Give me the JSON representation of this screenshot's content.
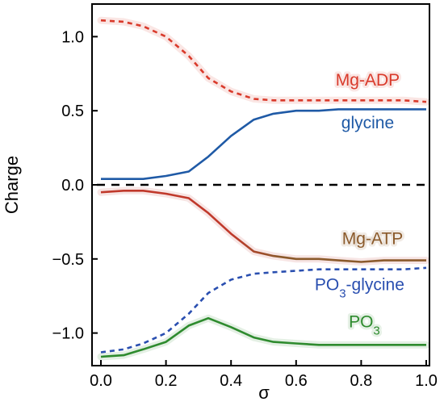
{
  "chart_data": {
    "type": "line",
    "xlabel": "σ",
    "ylabel": "Charge",
    "xlim": [
      0.0,
      1.0
    ],
    "ylim": [
      -1.22,
      1.22
    ],
    "x_ticks": [
      "0.0",
      "0.2",
      "0.4",
      "0.6",
      "0.8",
      "1.0"
    ],
    "x_tick_values": [
      0.0,
      0.2,
      0.4,
      0.6,
      0.8,
      1.0
    ],
    "y_ticks": [
      "1.0",
      "0.5",
      "0.0",
      "−0.5",
      "−1.0"
    ],
    "y_tick_values": [
      1.0,
      0.5,
      0.0,
      -0.5,
      -1.0
    ],
    "grid": false,
    "zero_line": {
      "y": 0.0,
      "style": "dashed",
      "color": "#000000"
    },
    "series": [
      {
        "name": "Mg-ADP",
        "label_parts": [
          {
            "text": "Mg-ADP"
          }
        ],
        "color": "#d93a2b",
        "style": "dotted",
        "highlight": true,
        "x": [
          0.0,
          0.07,
          0.13,
          0.2,
          0.27,
          0.33,
          0.4,
          0.47,
          0.53,
          0.6,
          0.67,
          0.73,
          0.8,
          0.87,
          0.93,
          1.0
        ],
        "y": [
          1.11,
          1.1,
          1.07,
          1.0,
          0.87,
          0.72,
          0.63,
          0.58,
          0.57,
          0.57,
          0.57,
          0.57,
          0.57,
          0.57,
          0.57,
          0.56
        ]
      },
      {
        "name": "glycine",
        "label_parts": [
          {
            "text": "glycine"
          }
        ],
        "color": "#1f5aa6",
        "style": "solid",
        "highlight": false,
        "x": [
          0.0,
          0.07,
          0.13,
          0.2,
          0.27,
          0.33,
          0.4,
          0.47,
          0.53,
          0.6,
          0.67,
          0.73,
          0.8,
          0.87,
          0.93,
          1.0
        ],
        "y": [
          0.04,
          0.04,
          0.04,
          0.06,
          0.09,
          0.19,
          0.33,
          0.44,
          0.48,
          0.5,
          0.5,
          0.51,
          0.51,
          0.51,
          0.51,
          0.51
        ]
      },
      {
        "name": "Mg-ATP",
        "label_parts": [
          {
            "text": "Mg-ATP"
          }
        ],
        "color": "#c0392b",
        "color_end": "#8b5a2b",
        "style": "solid",
        "highlight": true,
        "x": [
          0.0,
          0.07,
          0.13,
          0.2,
          0.27,
          0.33,
          0.4,
          0.47,
          0.53,
          0.6,
          0.67,
          0.73,
          0.8,
          0.87,
          0.93,
          1.0
        ],
        "y": [
          -0.05,
          -0.04,
          -0.04,
          -0.06,
          -0.09,
          -0.19,
          -0.33,
          -0.45,
          -0.48,
          -0.5,
          -0.5,
          -0.51,
          -0.52,
          -0.51,
          -0.51,
          -0.51
        ]
      },
      {
        "name": "PO3-glycine",
        "label_parts": [
          {
            "text": "PO"
          },
          {
            "text": "3",
            "sub": true
          },
          {
            "text": "-glycine"
          }
        ],
        "color": "#2a4fb0",
        "style": "dotted",
        "highlight": false,
        "x": [
          0.0,
          0.07,
          0.13,
          0.2,
          0.27,
          0.33,
          0.4,
          0.47,
          0.53,
          0.6,
          0.67,
          0.73,
          0.8,
          0.87,
          0.93,
          1.0
        ],
        "y": [
          -1.13,
          -1.11,
          -1.07,
          -1.0,
          -0.87,
          -0.73,
          -0.64,
          -0.6,
          -0.59,
          -0.58,
          -0.57,
          -0.57,
          -0.57,
          -0.57,
          -0.57,
          -0.56
        ]
      },
      {
        "name": "PO3",
        "label_parts": [
          {
            "text": "PO"
          },
          {
            "text": "3",
            "sub": true
          }
        ],
        "color": "#2e8b2e",
        "style": "solid",
        "highlight": true,
        "x": [
          0.0,
          0.07,
          0.13,
          0.2,
          0.27,
          0.33,
          0.4,
          0.47,
          0.53,
          0.6,
          0.67,
          0.73,
          0.8,
          0.87,
          0.93,
          1.0
        ],
        "y": [
          -1.16,
          -1.15,
          -1.11,
          -1.06,
          -0.95,
          -0.9,
          -0.96,
          -1.03,
          -1.06,
          -1.07,
          -1.08,
          -1.08,
          -1.08,
          -1.08,
          -1.08,
          -1.08
        ]
      }
    ]
  }
}
